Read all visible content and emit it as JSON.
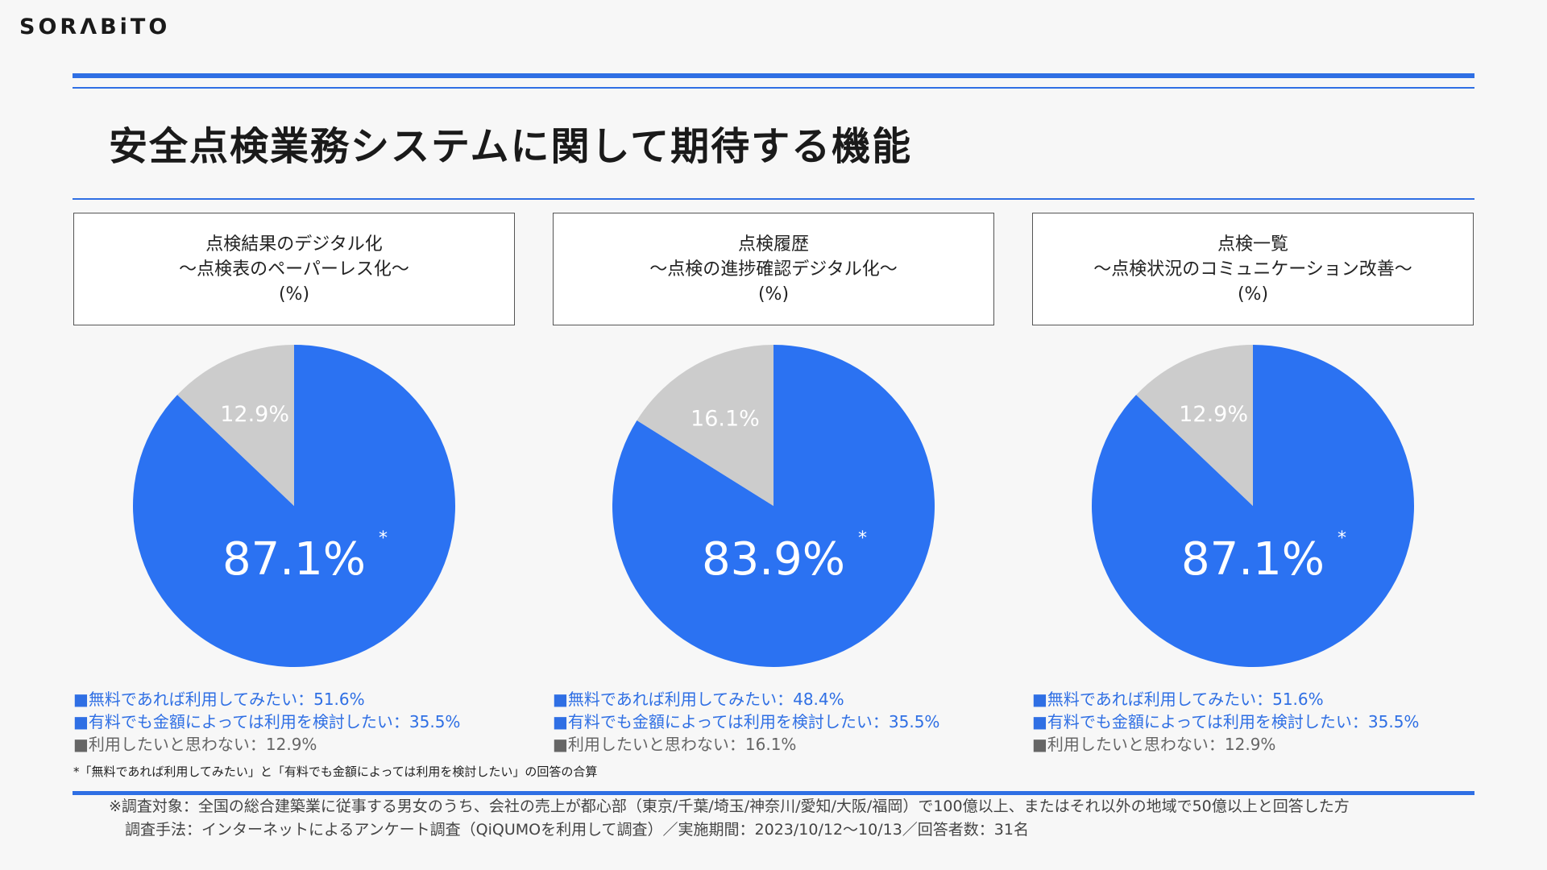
{
  "brand": {
    "logo": "SORΛBiTO"
  },
  "title": "安全点検業務システムに関して期待する機能",
  "colors": {
    "accent": "#2f6fe4",
    "pie_main": "#2b72f2",
    "pie_rest": "#cccccc",
    "legend_gray": "#666666"
  },
  "panels": [
    {
      "caption": [
        "点検結果のデジタル化",
        "～点検表のペーパーレス化～",
        "(%)"
      ],
      "legend": [
        "■無料であれば利用してみたい：51.6%",
        "■有料でも金額によっては利用を検討したい：35.5%",
        "■利用したいと思わない：12.9%"
      ]
    },
    {
      "caption": [
        "点検履歴",
        "～点検の進捗確認デジタル化～",
        "(%)"
      ],
      "legend": [
        "■無料であれば利用してみたい：48.4%",
        "■有料でも金額によっては利用を検討したい：35.5%",
        "■利用したいと思わない：16.1%"
      ]
    },
    {
      "caption": [
        "点検一覧",
        "～点検状況のコミュニケーション改善～",
        "(%)"
      ],
      "legend": [
        "■無料であれば利用してみたい：51.6%",
        "■有料でも金額によっては利用を検討したい：35.5%",
        "■利用したいと思わない：12.9%"
      ]
    }
  ],
  "chart_data": [
    {
      "type": "pie",
      "title": "点検結果のデジタル化 ～点検表のペーパーレス化～ (%)",
      "slices": [
        {
          "label": "87.1%",
          "value": 87.1,
          "asterisk": "*"
        },
        {
          "label": "12.9%",
          "value": 12.9
        }
      ]
    },
    {
      "type": "pie",
      "title": "点検履歴 ～点検の進捗確認デジタル化～ (%)",
      "slices": [
        {
          "label": "83.9%",
          "value": 83.9,
          "asterisk": "*"
        },
        {
          "label": "16.1%",
          "value": 16.1
        }
      ]
    },
    {
      "type": "pie",
      "title": "点検一覧 ～点検状況のコミュニケーション改善～ (%)",
      "slices": [
        {
          "label": "87.1%",
          "value": 87.1,
          "asterisk": "*"
        },
        {
          "label": "12.9%",
          "value": 12.9
        }
      ]
    }
  ],
  "note": "*「無料であれば利用してみたい」と「有料でも金額によっては利用を検討したい」の回答の合算",
  "footer": [
    "※調査対象：全国の総合建築業に従事する男女のうち、会社の売上が都心部（東京/千葉/埼玉/神奈川/愛知/大阪/福岡）で100億以上、またはそれ以外の地域で50億以上と回答した方",
    "調査手法：インターネットによるアンケート調査（QiQUMOを利用して調査）／実施期間：2023/10/12〜10/13／回答者数：31名"
  ]
}
